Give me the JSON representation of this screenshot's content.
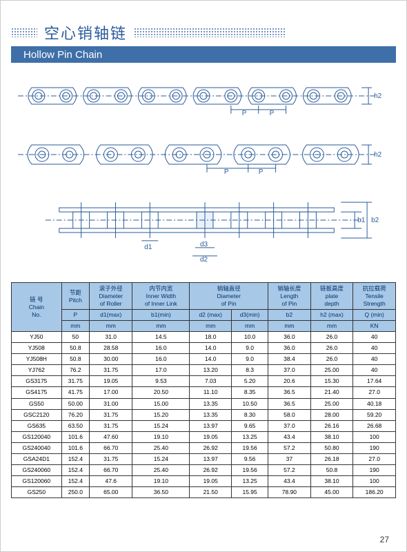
{
  "header": {
    "title_cn": "空心销轴链",
    "title_en": "Hollow Pin Chain"
  },
  "diagram": {
    "stroke": "#2a5a9a",
    "dim_p": "P",
    "dim_h2": "h2",
    "dim_d1": "d1",
    "dim_d2": "d2",
    "dim_d3": "d3",
    "dim_b1": "b1",
    "dim_b2": "b2"
  },
  "table": {
    "headers": {
      "chain_no_cn": "链 号",
      "chain_no_en": "Chain",
      "chain_no_en2": "No.",
      "pitch_cn": "节距",
      "pitch_en": "Pitch",
      "pitch_sym": "P",
      "pitch_unit": "mm",
      "roller_cn": "滚子外径",
      "roller_en": "Diameter",
      "roller_en2": "of Roller",
      "roller_sym": "d1(max)",
      "roller_unit": "mm",
      "inner_cn": "内节内宽",
      "inner_en": "Inner Width",
      "inner_en2": "of Inner Link",
      "inner_sym": "b1(min)",
      "inner_unit": "mm",
      "pin_dia_cn": "销轴直径",
      "pin_dia_en": "Diameter",
      "pin_dia_en2": "of Pin",
      "d2_sym": "d2 (max)",
      "d2_unit": "mm",
      "d3_sym": "d3(min)",
      "d3_unit": "mm",
      "pin_len_cn": "销轴长度",
      "pin_len_en": "Length",
      "pin_len_en2": "of Pin",
      "pin_len_sym": "b2",
      "pin_len_unit": "mm",
      "plate_cn": "链板高度",
      "plate_en": "plate",
      "plate_en2": "depth",
      "plate_sym": "h2 (max)",
      "plate_unit": "mm",
      "tensile_cn": "抗拉载荷",
      "tensile_en": "Tensile",
      "tensile_en2": "Strength",
      "tensile_sym": "Q (min)",
      "tensile_unit": "KN"
    },
    "rows": [
      [
        "YJ50",
        "50",
        "31.0",
        "14.5",
        "18.0",
        "10.0",
        "36.0",
        "26.0",
        "40"
      ],
      [
        "YJ508",
        "50.8",
        "28.58",
        "16.0",
        "14.0",
        "9.0",
        "36.0",
        "26.0",
        "40"
      ],
      [
        "YJ508H",
        "50.8",
        "30.00",
        "16.0",
        "14.0",
        "9.0",
        "38.4",
        "26.0",
        "40"
      ],
      [
        "YJ762",
        "76.2",
        "31.75",
        "17.0",
        "13.20",
        "8.3",
        "37.0",
        "25.00",
        "40"
      ],
      [
        "GS3175",
        "31.75",
        "19.05",
        "9.53",
        "7.03",
        "5.20",
        "20.6",
        "15.30",
        "17.64"
      ],
      [
        "GS4175",
        "41.75",
        "17.00",
        "20.50",
        "11.10",
        "8.35",
        "36.5",
        "21.40",
        "27.0"
      ],
      [
        "GS50",
        "50.00",
        "31.00",
        "15.00",
        "13.35",
        "10.50",
        "36.5",
        "25.00",
        "40.18"
      ],
      [
        "GSC2120",
        "76.20",
        "31.75",
        "15.20",
        "13.35",
        "8.30",
        "58.0",
        "28.00",
        "59.20"
      ],
      [
        "GS635",
        "63.50",
        "31.75",
        "15.24",
        "13.97",
        "9.65",
        "37.0",
        "26.16",
        "26.68"
      ],
      [
        "GS120040",
        "101.6",
        "47.60",
        "19.10",
        "19.05",
        "13.25",
        "43.4",
        "38.10",
        "100"
      ],
      [
        "GS240040",
        "101.6",
        "66.70",
        "25.40",
        "26.92",
        "19.56",
        "57.2",
        "50.80",
        "190"
      ],
      [
        "GSA24D1",
        "152.4",
        "31.75",
        "15.24",
        "13.97",
        "9.56",
        "37",
        "26.18",
        "27.0"
      ],
      [
        "GS240060",
        "152.4",
        "66.70",
        "25.40",
        "26.92",
        "19.56",
        "57.2",
        "50.8",
        "190"
      ],
      [
        "GS120060",
        "152.4",
        "47.6",
        "19.10",
        "19.05",
        "13.25",
        "43.4",
        "38.10",
        "100"
      ],
      [
        "GS250",
        "250.0",
        "65.00",
        "36.50",
        "21.50",
        "15.95",
        "78.90",
        "45.00",
        "186.20"
      ]
    ]
  },
  "page_number": "27"
}
